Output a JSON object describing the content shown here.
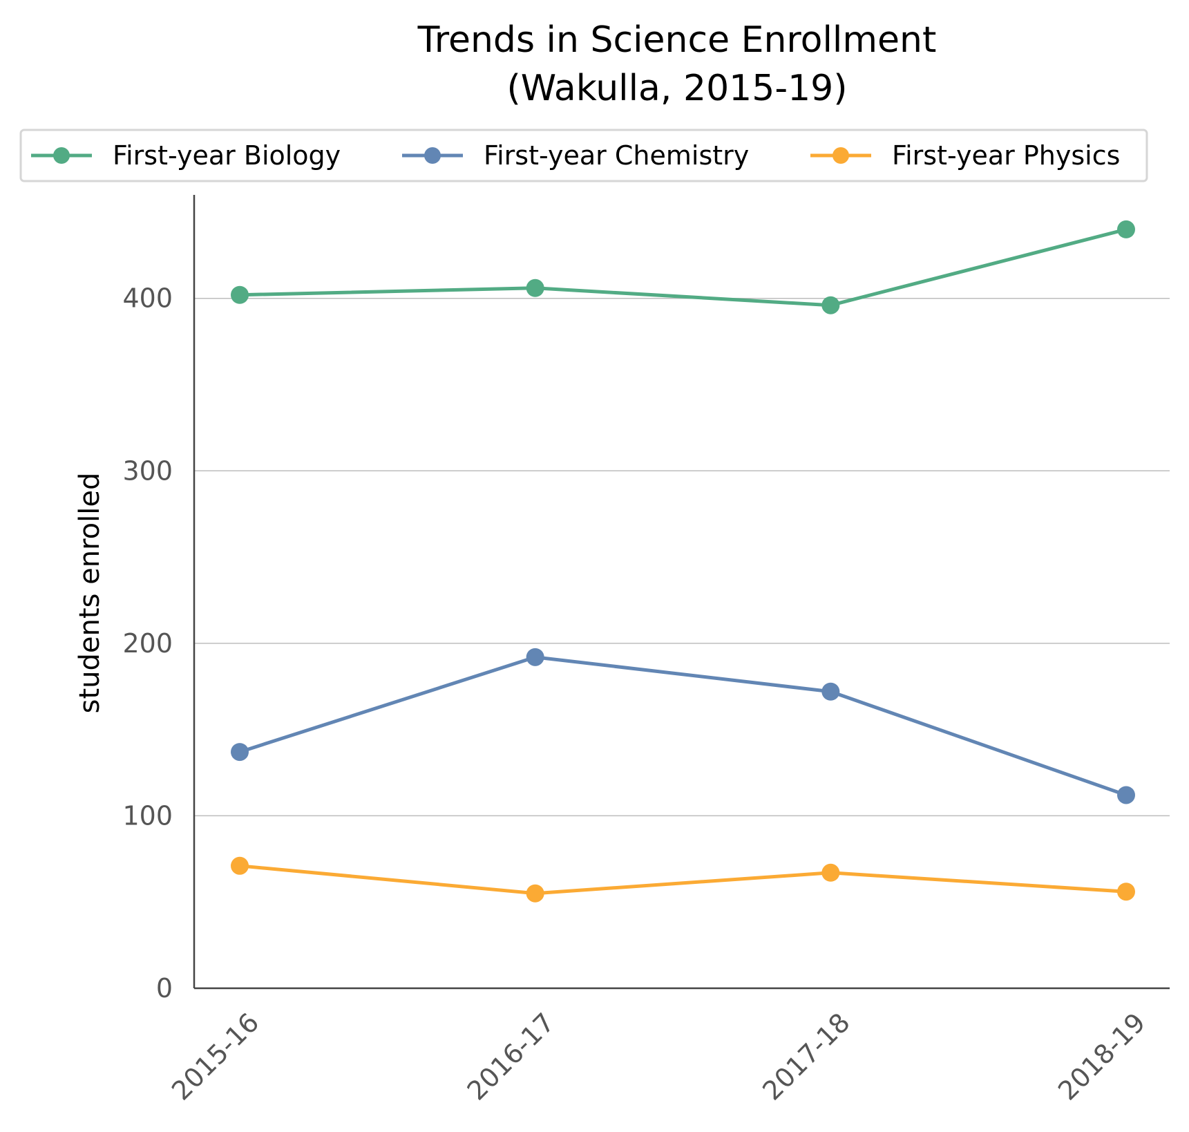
{
  "chart_data": {
    "type": "line",
    "title_lines": [
      "Trends in Science Enrollment",
      "(Wakulla, 2015-19)"
    ],
    "xlabel": "",
    "ylabel": "students enrolled",
    "categories": [
      "2015-16",
      "2016-17",
      "2017-18",
      "2018-19"
    ],
    "y_ticks": [
      0,
      100,
      200,
      300,
      400
    ],
    "ylim": [
      0,
      460
    ],
    "grid": "horizontal",
    "legend_position": "top",
    "series": [
      {
        "name": "First-year Biology",
        "color": "#52ab84",
        "values": [
          402,
          406,
          396,
          440
        ]
      },
      {
        "name": "First-year Chemistry",
        "color": "#6286b4",
        "values": [
          137,
          192,
          172,
          112
        ]
      },
      {
        "name": "First-year Physics",
        "color": "#fbaa34",
        "values": [
          71,
          55,
          67,
          56
        ]
      }
    ]
  }
}
